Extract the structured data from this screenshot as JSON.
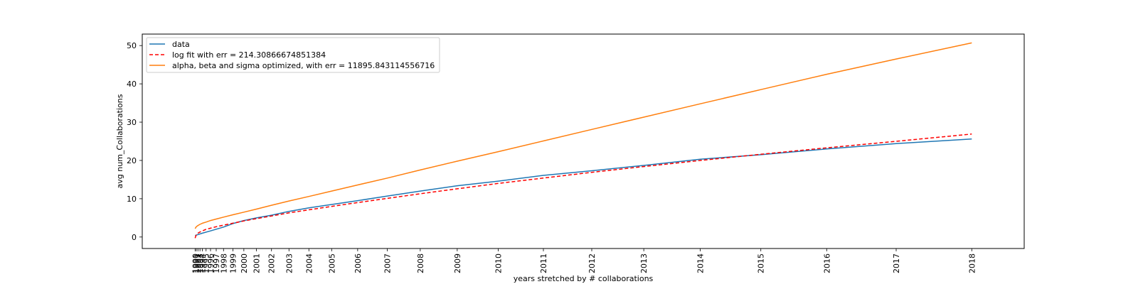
{
  "chart_data": {
    "type": "line",
    "title": "",
    "xlabel": "years stretched by # collaborations",
    "ylabel": "avg num_Collaborations",
    "x_ticks": [
      {
        "label": "1990",
        "x": 0.0
      },
      {
        "label": "1991",
        "x": 0.003
      },
      {
        "label": "1992",
        "x": 0.007
      },
      {
        "label": "1993",
        "x": 0.012
      },
      {
        "label": "1994",
        "x": 0.018
      },
      {
        "label": "1995",
        "x": 0.027
      },
      {
        "label": "1996",
        "x": 0.038
      },
      {
        "label": "1997",
        "x": 0.052
      },
      {
        "label": "1998",
        "x": 0.07
      },
      {
        "label": "1999",
        "x": 0.093
      },
      {
        "label": "2000",
        "x": 0.12
      },
      {
        "label": "2001",
        "x": 0.151
      },
      {
        "label": "2002",
        "x": 0.188
      },
      {
        "label": "2003",
        "x": 0.231
      },
      {
        "label": "2004",
        "x": 0.28
      },
      {
        "label": "2005",
        "x": 0.336
      },
      {
        "label": "2006",
        "x": 0.4
      },
      {
        "label": "2007",
        "x": 0.473
      },
      {
        "label": "2008",
        "x": 0.554
      },
      {
        "label": "2009",
        "x": 0.645
      },
      {
        "label": "2010",
        "x": 0.746
      },
      {
        "label": "2011",
        "x": 0.857
      },
      {
        "label": "2012",
        "x": 0.976
      },
      {
        "label": "2013",
        "x": 1.104
      },
      {
        "label": "2014",
        "x": 1.243
      },
      {
        "label": "2015",
        "x": 1.392
      },
      {
        "label": "2016",
        "x": 1.554
      },
      {
        "label": "2017",
        "x": 1.725
      },
      {
        "label": "2018",
        "x": 1.911
      }
    ],
    "y_ticks": [
      0,
      10,
      20,
      30,
      40,
      50
    ],
    "xlim": [
      -0.13,
      2.04
    ],
    "ylim": [
      -3,
      53
    ],
    "grid": false,
    "legend_position": "top-left",
    "series": [
      {
        "name": "data",
        "color": "#1f77b4",
        "style": "solid",
        "points": [
          [
            0.0,
            0.4
          ],
          [
            0.018,
            1.0
          ],
          [
            0.038,
            1.6
          ],
          [
            0.07,
            2.6
          ],
          [
            0.093,
            3.5
          ],
          [
            0.12,
            4.3
          ],
          [
            0.151,
            5.0
          ],
          [
            0.188,
            5.7
          ],
          [
            0.231,
            6.7
          ],
          [
            0.28,
            7.6
          ],
          [
            0.336,
            8.5
          ],
          [
            0.4,
            9.5
          ],
          [
            0.473,
            10.7
          ],
          [
            0.554,
            12.0
          ],
          [
            0.645,
            13.4
          ],
          [
            0.746,
            14.6
          ],
          [
            0.857,
            16.1
          ],
          [
            0.976,
            17.3
          ],
          [
            1.104,
            18.7
          ],
          [
            1.243,
            20.3
          ],
          [
            1.392,
            21.5
          ],
          [
            1.554,
            23.0
          ],
          [
            1.725,
            24.4
          ],
          [
            1.911,
            25.6
          ]
        ]
      },
      {
        "name": "log fit with err = 214.30866674851384",
        "color": "#ff0000",
        "style": "dashed",
        "points": [
          [
            0.0,
            -0.3
          ],
          [
            0.003,
            0.6
          ],
          [
            0.007,
            1.0
          ],
          [
            0.012,
            1.3
          ],
          [
            0.018,
            1.6
          ],
          [
            0.027,
            2.0
          ],
          [
            0.038,
            2.3
          ],
          [
            0.052,
            2.7
          ],
          [
            0.07,
            3.1
          ],
          [
            0.093,
            3.6
          ],
          [
            0.12,
            4.2
          ],
          [
            0.151,
            4.8
          ],
          [
            0.188,
            5.5
          ],
          [
            0.231,
            6.3
          ],
          [
            0.28,
            7.1
          ],
          [
            0.336,
            8.0
          ],
          [
            0.4,
            9.0
          ],
          [
            0.473,
            10.1
          ],
          [
            0.554,
            11.3
          ],
          [
            0.645,
            12.6
          ],
          [
            0.746,
            14.0
          ],
          [
            0.857,
            15.4
          ],
          [
            0.976,
            16.9
          ],
          [
            1.104,
            18.4
          ],
          [
            1.243,
            20.0
          ],
          [
            1.392,
            21.6
          ],
          [
            1.554,
            23.3
          ],
          [
            1.725,
            25.0
          ],
          [
            1.911,
            26.9
          ]
        ]
      },
      {
        "name": "alpha, beta and sigma optimized, with err = 11895.843114556716",
        "color": "#ff7f0e",
        "style": "solid",
        "points": [
          [
            0.0,
            2.2
          ],
          [
            0.003,
            2.7
          ],
          [
            0.007,
            3.0
          ],
          [
            0.012,
            3.3
          ],
          [
            0.018,
            3.6
          ],
          [
            0.027,
            3.9
          ],
          [
            0.038,
            4.3
          ],
          [
            0.052,
            4.7
          ],
          [
            0.07,
            5.2
          ],
          [
            0.093,
            5.8
          ],
          [
            0.12,
            6.5
          ],
          [
            0.151,
            7.3
          ],
          [
            0.188,
            8.3
          ],
          [
            0.231,
            9.4
          ],
          [
            0.28,
            10.6
          ],
          [
            0.336,
            12.0
          ],
          [
            0.4,
            13.6
          ],
          [
            0.473,
            15.4
          ],
          [
            0.554,
            17.5
          ],
          [
            0.645,
            19.8
          ],
          [
            0.746,
            22.3
          ],
          [
            0.857,
            25.1
          ],
          [
            0.976,
            28.1
          ],
          [
            1.104,
            31.3
          ],
          [
            1.243,
            34.8
          ],
          [
            1.392,
            38.5
          ],
          [
            1.554,
            42.5
          ],
          [
            1.725,
            46.5
          ],
          [
            1.911,
            50.7
          ]
        ]
      }
    ]
  }
}
